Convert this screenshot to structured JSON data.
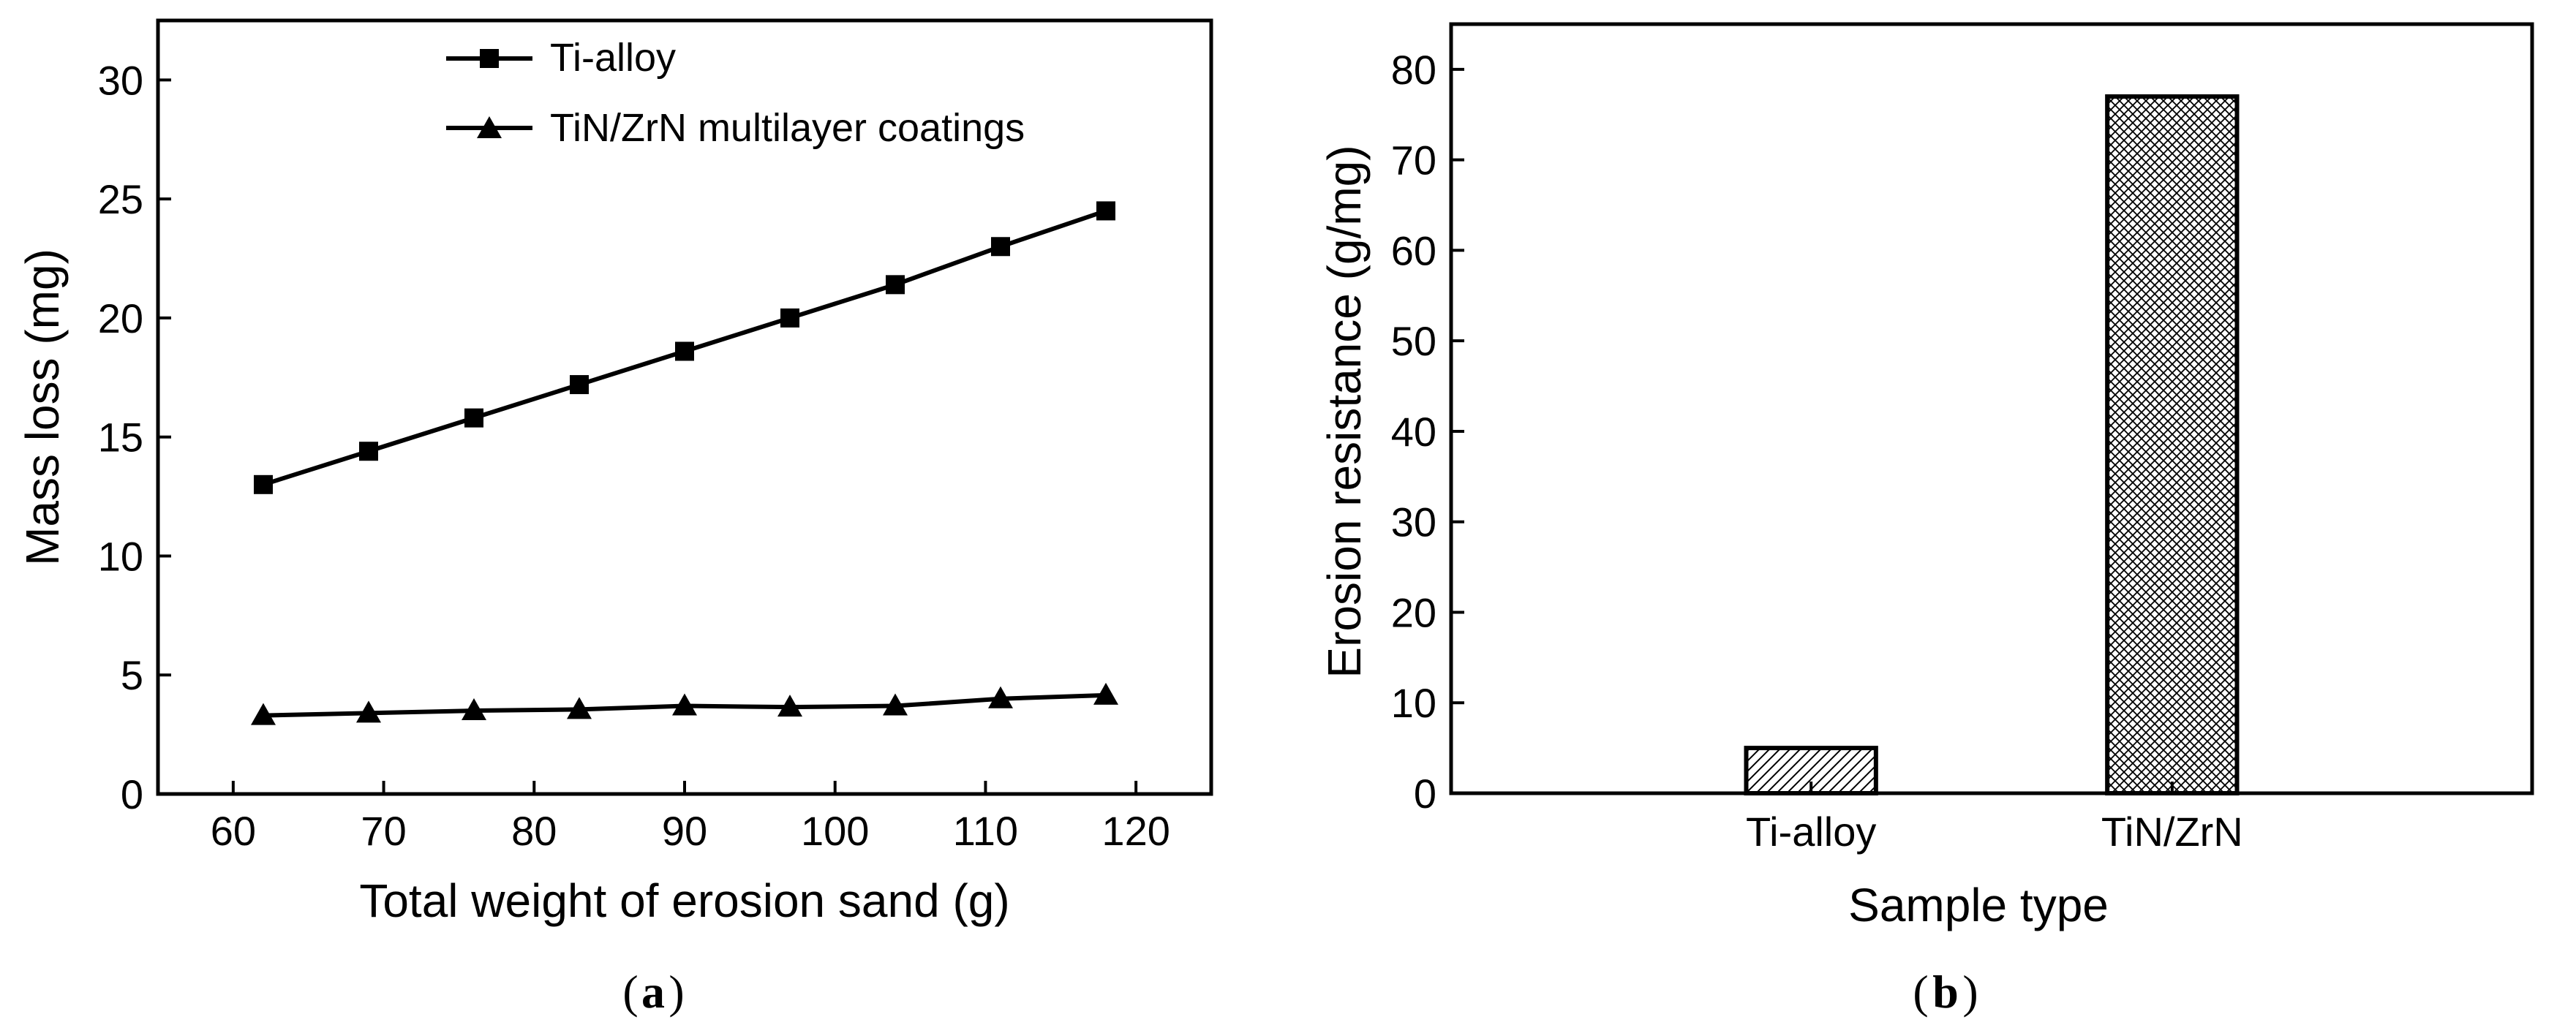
{
  "chart_data": [
    {
      "panel": "a",
      "type": "line",
      "caption_letter": "a",
      "xlabel": "Total weight of erosion sand (g)",
      "ylabel": "Mass loss (mg)",
      "xlim": [
        55,
        125
      ],
      "ylim": [
        0,
        32.5
      ],
      "xticks": [
        60,
        70,
        80,
        90,
        100,
        110,
        120
      ],
      "yticks": [
        0,
        5,
        10,
        15,
        20,
        25,
        30
      ],
      "legend_position": "top-right",
      "series": [
        {
          "name": "Ti-alloy",
          "marker": "square",
          "x": [
            62,
            69,
            76,
            83,
            90,
            97,
            104,
            111,
            118
          ],
          "y": [
            13.0,
            14.4,
            15.8,
            17.2,
            18.6,
            20.0,
            21.4,
            23.0,
            24.5
          ]
        },
        {
          "name": "TiN/ZrN multilayer coatings",
          "marker": "triangle",
          "x": [
            62,
            69,
            76,
            83,
            90,
            97,
            104,
            111,
            118
          ],
          "y": [
            3.3,
            3.4,
            3.5,
            3.55,
            3.7,
            3.65,
            3.7,
            4.0,
            4.15
          ]
        }
      ]
    },
    {
      "panel": "b",
      "type": "bar",
      "caption_letter": "b",
      "xlabel": "Sample type",
      "ylabel": "Erosion resistance (g/mg)",
      "ylim": [
        0,
        85
      ],
      "yticks": [
        0,
        10,
        20,
        30,
        40,
        50,
        60,
        70,
        80
      ],
      "categories": [
        "Ti-alloy",
        "TiN/ZrN"
      ],
      "values": [
        5,
        77
      ],
      "patterns": [
        "diagonal-hatch",
        "cross-hatch"
      ]
    }
  ]
}
